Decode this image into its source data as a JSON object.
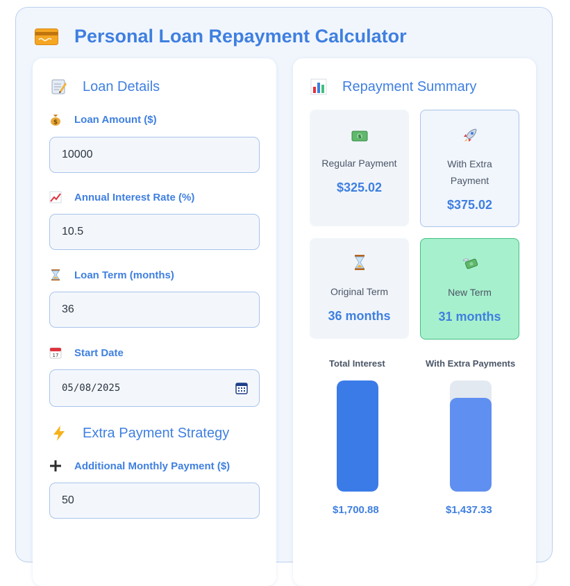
{
  "app": {
    "title": "Personal Loan Repayment Calculator",
    "icon": "credit-card-icon"
  },
  "loan_details": {
    "title": "Loan Details",
    "icon": "memo-icon",
    "fields": {
      "amount": {
        "label": "Loan Amount ($)",
        "value": "10000",
        "icon": "money-bag-icon"
      },
      "rate": {
        "label": "Annual Interest Rate (%)",
        "value": "10.5",
        "icon": "chart-increasing-icon"
      },
      "term": {
        "label": "Loan Term (months)",
        "value": "36",
        "icon": "hourglass-icon"
      },
      "start": {
        "label": "Start Date",
        "value": "05/08/2025",
        "icon": "calendar-icon"
      }
    }
  },
  "extra_strategy": {
    "title": "Extra Payment Strategy",
    "icon": "lightning-icon",
    "fields": {
      "additional": {
        "label": "Additional Monthly Payment ($)",
        "value": "50",
        "icon": "plus-icon"
      }
    }
  },
  "summary": {
    "title": "Repayment Summary",
    "icon": "bar-chart-icon",
    "cards": {
      "regular": {
        "label": "Regular Payment",
        "value": "$325.02",
        "icon": "dollar-banknote-icon"
      },
      "extra": {
        "label": "With Extra Payment",
        "value": "$375.02",
        "icon": "rocket-icon"
      },
      "original_term": {
        "label": "Original Term",
        "value": "36 months",
        "icon": "hourglass-icon"
      },
      "new_term": {
        "label": "New Term",
        "value": "31 months",
        "icon": "money-with-wings-icon"
      }
    },
    "comparison": {
      "total": {
        "label": "Total Interest",
        "value": "$1,700.88",
        "fill": 1.0
      },
      "with_extra": {
        "label": "With Extra Payments",
        "value": "$1,437.33",
        "fill": 0.845
      }
    }
  },
  "colors": {
    "accent": "#3f7fe0",
    "bar_primary": "#3b7be8",
    "bar_secondary": "#5f8ff0",
    "highlight_card": "#a7f0cd"
  }
}
